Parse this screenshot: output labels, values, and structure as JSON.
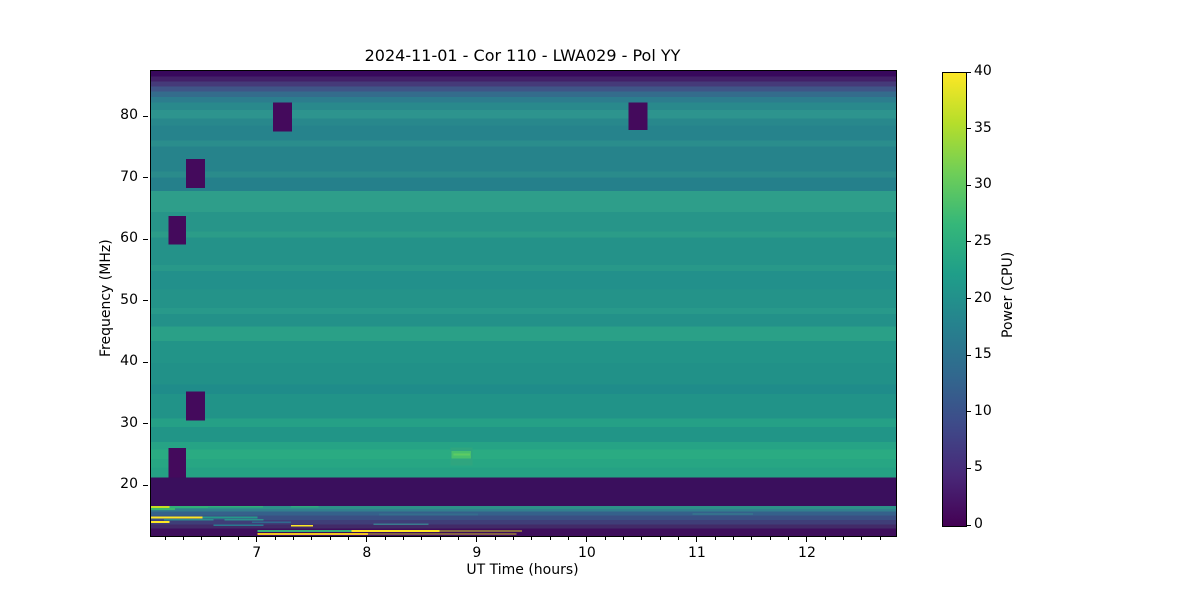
{
  "chart_data": {
    "type": "heatmap",
    "title": "2024-11-01 - Cor 110 - LWA029 - Pol YY",
    "xlabel": "UT Time (hours)",
    "ylabel": "Frequency (MHz)",
    "colorbar_label": "Power (CPU)",
    "xlim": [
      6.03,
      12.8
    ],
    "ylim": [
      11.9,
      87.5
    ],
    "clim": [
      0,
      40
    ],
    "xticks": [
      7,
      8,
      9,
      10,
      11,
      12
    ],
    "x_minor_step_hours": 0.166667,
    "yticks": [
      20,
      30,
      40,
      50,
      60,
      70,
      80
    ],
    "colorbar_ticks": [
      0,
      5,
      10,
      15,
      20,
      25,
      30,
      35,
      40
    ],
    "grid": false,
    "legend": "none",
    "colormap": "viridis",
    "colormap_stops": [
      "#440154",
      "#482878",
      "#3e4a89",
      "#31688e",
      "#26828e",
      "#1f9e89",
      "#35b779",
      "#6ece58",
      "#b5de2b",
      "#fde725"
    ],
    "background_bands": [
      {
        "f_top": 87.5,
        "f_bot": 86.6,
        "color": "#38085c"
      },
      {
        "f_top": 86.6,
        "f_bot": 85.8,
        "color": "#422068"
      },
      {
        "f_top": 85.8,
        "f_bot": 85.0,
        "color": "#453a79"
      },
      {
        "f_top": 85.0,
        "f_bot": 84.2,
        "color": "#3f5587"
      },
      {
        "f_top": 84.2,
        "f_bot": 83.3,
        "color": "#346c8c"
      },
      {
        "f_top": 83.3,
        "f_bot": 82.4,
        "color": "#2c7d8e"
      },
      {
        "f_top": 82.4,
        "f_bot": 81.2,
        "color": "#29898c"
      },
      {
        "f_top": 81.2,
        "f_bot": 79.8,
        "color": "#2d948e"
      },
      {
        "f_top": 79.8,
        "f_bot": 78.6,
        "color": "#28888c"
      },
      {
        "f_top": 78.6,
        "f_bot": 76.2,
        "color": "#26838c"
      },
      {
        "f_top": 76.2,
        "f_bot": 75.2,
        "color": "#2a8d8c"
      },
      {
        "f_top": 75.2,
        "f_bot": 71.2,
        "color": "#26838b"
      },
      {
        "f_top": 71.2,
        "f_bot": 70.2,
        "color": "#2a8b8b"
      },
      {
        "f_top": 70.2,
        "f_bot": 68.0,
        "color": "#25808b"
      },
      {
        "f_top": 68.0,
        "f_bot": 64.6,
        "color": "#2e9e8a"
      },
      {
        "f_top": 64.6,
        "f_bot": 61.4,
        "color": "#279589"
      },
      {
        "f_top": 61.4,
        "f_bot": 60.4,
        "color": "#2b9c88"
      },
      {
        "f_top": 60.4,
        "f_bot": 56.0,
        "color": "#249289"
      },
      {
        "f_top": 56.0,
        "f_bot": 55.0,
        "color": "#289889"
      },
      {
        "f_top": 55.0,
        "f_bot": 52.0,
        "color": "#22908b"
      },
      {
        "f_top": 52.0,
        "f_bot": 49.0,
        "color": "#249389"
      },
      {
        "f_top": 49.0,
        "f_bot": 48.0,
        "color": "#28998a"
      },
      {
        "f_top": 48.0,
        "f_bot": 46.0,
        "color": "#239189"
      },
      {
        "f_top": 46.0,
        "f_bot": 43.6,
        "color": "#2aa087"
      },
      {
        "f_top": 43.6,
        "f_bot": 40.0,
        "color": "#229488"
      },
      {
        "f_top": 40.0,
        "f_bot": 36.5,
        "color": "#219188"
      },
      {
        "f_top": 36.5,
        "f_bot": 35.0,
        "color": "#1f8c8a"
      },
      {
        "f_top": 35.0,
        "f_bot": 31.0,
        "color": "#219388"
      },
      {
        "f_top": 31.0,
        "f_bot": 29.6,
        "color": "#25a086"
      },
      {
        "f_top": 29.6,
        "f_bot": 27.2,
        "color": "#219587"
      },
      {
        "f_top": 27.2,
        "f_bot": 26.0,
        "color": "#26a385"
      },
      {
        "f_top": 26.0,
        "f_bot": 24.4,
        "color": "#2aab82"
      },
      {
        "f_top": 24.4,
        "f_bot": 23.0,
        "color": "#27a683"
      },
      {
        "f_top": 23.0,
        "f_bot": 21.4,
        "color": "#25a184"
      },
      {
        "f_top": 21.4,
        "f_bot": 16.8,
        "color": "#3a0f5d"
      },
      {
        "f_top": 16.8,
        "f_bot": 16.3,
        "color": "#2d9188"
      },
      {
        "f_top": 16.3,
        "f_bot": 15.9,
        "color": "#327f8e"
      },
      {
        "f_top": 15.9,
        "f_bot": 15.2,
        "color": "#35618b"
      },
      {
        "f_top": 15.2,
        "f_bot": 14.5,
        "color": "#3a4f83"
      },
      {
        "f_top": 14.5,
        "f_bot": 13.8,
        "color": "#3f3e78"
      },
      {
        "f_top": 13.8,
        "f_bot": 13.1,
        "color": "#422a68"
      },
      {
        "f_top": 13.1,
        "f_bot": 11.9,
        "color": "#3f0e5c"
      }
    ],
    "row_segments": [
      {
        "t0": 6.03,
        "t1": 6.2,
        "f_top": 16.8,
        "f_bot": 16.45,
        "color": "#c4de24"
      },
      {
        "t0": 6.2,
        "t1": 6.55,
        "f_top": 16.8,
        "f_bot": 16.45,
        "color": "#31b077"
      },
      {
        "t0": 6.55,
        "t1": 7.05,
        "f_top": 16.75,
        "f_bot": 16.5,
        "color": "#2fae79"
      },
      {
        "t0": 7.3,
        "t1": 7.55,
        "f_top": 16.75,
        "f_bot": 16.5,
        "color": "#2fa87e"
      },
      {
        "t0": 6.03,
        "t1": 6.25,
        "f_top": 16.45,
        "f_bot": 16.1,
        "color": "#3bb56f"
      },
      {
        "t0": 6.03,
        "t1": 6.5,
        "f_top": 15.1,
        "f_bot": 14.75,
        "color": "#fde725"
      },
      {
        "t0": 6.5,
        "t1": 7.0,
        "f_top": 15.1,
        "f_bot": 14.75,
        "color": "#25988a"
      },
      {
        "t0": 8.1,
        "t1": 9.0,
        "f_top": 15.55,
        "f_bot": 15.25,
        "color": "#346d8d"
      },
      {
        "t0": 10.95,
        "t1": 11.5,
        "f_top": 15.6,
        "f_bot": 15.35,
        "color": "#35718d"
      },
      {
        "t0": 6.15,
        "t1": 6.6,
        "f_top": 14.7,
        "f_bot": 14.45,
        "color": "#2e8b8e"
      },
      {
        "t0": 6.7,
        "t1": 7.05,
        "f_top": 14.7,
        "f_bot": 14.45,
        "color": "#2d8f8d"
      },
      {
        "t0": 6.03,
        "t1": 6.2,
        "f_top": 14.3,
        "f_bot": 14.05,
        "color": "#fde725"
      },
      {
        "t0": 6.95,
        "t1": 7.3,
        "f_top": 14.25,
        "f_bot": 14.0,
        "color": "#31688e"
      },
      {
        "t0": 6.6,
        "t1": 7.05,
        "f_top": 13.75,
        "f_bot": 13.5,
        "color": "#2a788e"
      },
      {
        "t0": 7.3,
        "t1": 7.5,
        "f_top": 13.7,
        "f_bot": 13.45,
        "color": "#fde725"
      },
      {
        "t0": 8.05,
        "t1": 8.55,
        "f_top": 13.9,
        "f_bot": 13.7,
        "color": "#3a7a8e"
      },
      {
        "t0": 7.0,
        "t1": 7.85,
        "f_top": 12.85,
        "f_bot": 12.55,
        "color": "#36b378"
      },
      {
        "t0": 7.85,
        "t1": 8.65,
        "f_top": 12.85,
        "f_bot": 12.55,
        "color": "#fde725"
      },
      {
        "t0": 8.65,
        "t1": 9.4,
        "f_top": 12.8,
        "f_bot": 12.6,
        "color": "#cfd128"
      },
      {
        "t0": 7.0,
        "t1": 8.0,
        "f_top": 12.35,
        "f_bot": 12.1,
        "color": "#f2c51f"
      },
      {
        "t0": 8.0,
        "t1": 9.35,
        "f_top": 12.3,
        "f_bot": 12.15,
        "color": "#c9b52a"
      }
    ],
    "flagged_blocks": [
      {
        "t0": 7.14,
        "t1": 7.31,
        "f_top": 82.4,
        "f_bot": 77.7,
        "color": "#440a5c"
      },
      {
        "t0": 10.37,
        "t1": 10.54,
        "f_top": 82.4,
        "f_bot": 77.9,
        "color": "#440a5c"
      },
      {
        "t0": 6.35,
        "t1": 6.52,
        "f_top": 73.2,
        "f_bot": 68.5,
        "color": "#440a5c"
      },
      {
        "t0": 6.19,
        "t1": 6.35,
        "f_top": 63.9,
        "f_bot": 59.3,
        "color": "#440a5c"
      },
      {
        "t0": 6.35,
        "t1": 6.52,
        "f_top": 35.4,
        "f_bot": 30.7,
        "color": "#440a5c"
      },
      {
        "t0": 6.19,
        "t1": 6.35,
        "f_top": 26.2,
        "f_bot": 21.4,
        "color": "#440a5c"
      }
    ],
    "bright_patches": [
      {
        "t0": 8.75,
        "t1": 8.95,
        "f_top": 26.3,
        "f_bot": 23.4,
        "color": "#2fa57f"
      },
      {
        "t0": 8.76,
        "t1": 8.94,
        "f_top": 25.7,
        "f_bot": 24.5,
        "color": "#48c06c"
      },
      {
        "t0": 8.78,
        "t1": 8.93,
        "f_top": 25.35,
        "f_bot": 24.95,
        "color": "#5ecb63"
      }
    ]
  }
}
